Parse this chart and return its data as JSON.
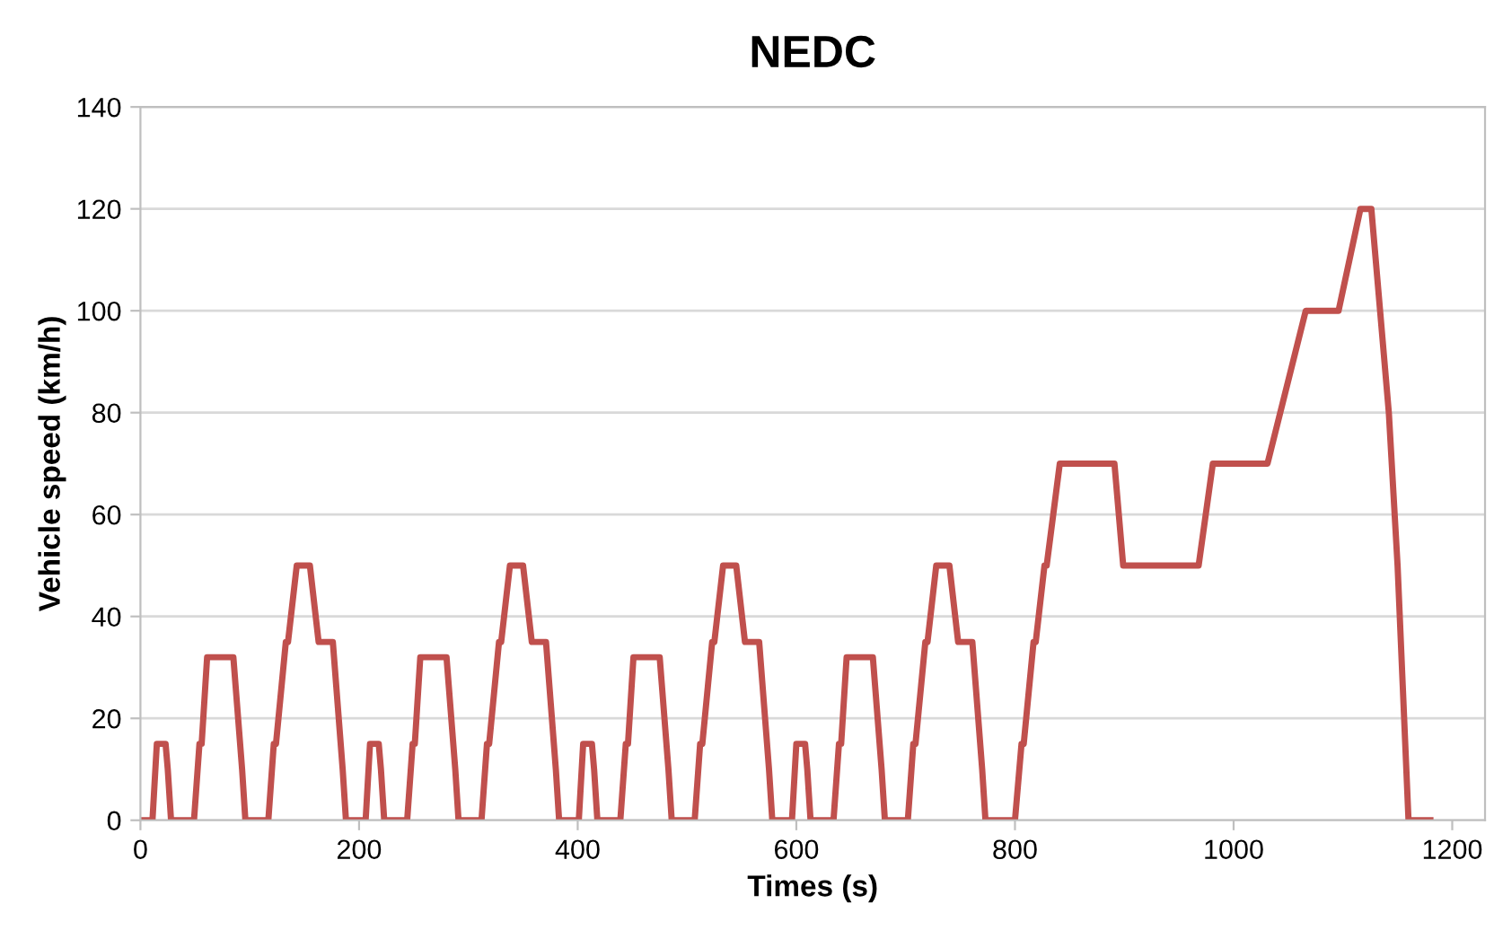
{
  "chart_data": {
    "type": "line",
    "title": "NEDC",
    "xlabel": "Times (s)",
    "ylabel": "Vehicle speed (km/h)",
    "series": [
      {
        "color": "#c0504d",
        "x": [
          0,
          11,
          15,
          23,
          25,
          28,
          49,
          54,
          56,
          61,
          85,
          93,
          96,
          117,
          122,
          124,
          133,
          135,
          143,
          155,
          163,
          176,
          185,
          188,
          195,
          206,
          210,
          218,
          220,
          223,
          244,
          249,
          251,
          256,
          280,
          288,
          291,
          312,
          317,
          319,
          328,
          330,
          338,
          350,
          358,
          371,
          380,
          383,
          390,
          401,
          405,
          413,
          415,
          418,
          439,
          444,
          446,
          451,
          475,
          483,
          486,
          507,
          512,
          514,
          523,
          525,
          533,
          545,
          553,
          566,
          575,
          578,
          585,
          596,
          600,
          608,
          610,
          613,
          634,
          639,
          641,
          646,
          670,
          678,
          681,
          702,
          707,
          709,
          718,
          720,
          728,
          740,
          748,
          761,
          770,
          773,
          780,
          800,
          806,
          808,
          817,
          819,
          827,
          829,
          841,
          891,
          899,
          968,
          981,
          1031,
          1066,
          1096,
          1116,
          1126,
          1142,
          1150,
          1160,
          1180
        ],
        "values": [
          0,
          0,
          15,
          15,
          10,
          0,
          0,
          15,
          15,
          32,
          32,
          10,
          0,
          0,
          15,
          15,
          35,
          35,
          50,
          50,
          35,
          35,
          10,
          0,
          0,
          0,
          15,
          15,
          10,
          0,
          0,
          15,
          15,
          32,
          32,
          10,
          0,
          0,
          15,
          15,
          35,
          35,
          50,
          50,
          35,
          35,
          10,
          0,
          0,
          0,
          15,
          15,
          10,
          0,
          0,
          15,
          15,
          32,
          32,
          10,
          0,
          0,
          15,
          15,
          35,
          35,
          50,
          50,
          35,
          35,
          10,
          0,
          0,
          0,
          15,
          15,
          10,
          0,
          0,
          15,
          15,
          32,
          32,
          10,
          0,
          0,
          15,
          15,
          35,
          35,
          50,
          50,
          35,
          35,
          10,
          0,
          0,
          0,
          15,
          15,
          35,
          35,
          50,
          50,
          70,
          70,
          50,
          50,
          70,
          70,
          100,
          100,
          120,
          120,
          80,
          50,
          0,
          0
        ]
      }
    ],
    "xlim": [
      0,
      1230
    ],
    "xticks": [
      0,
      200,
      400,
      600,
      800,
      1000,
      1200
    ],
    "ylim": [
      0,
      140
    ],
    "yticks": [
      0,
      20,
      40,
      60,
      80,
      100,
      120,
      140
    ],
    "grid": "y",
    "marker": "none",
    "line_style": "solid",
    "legend": false
  }
}
